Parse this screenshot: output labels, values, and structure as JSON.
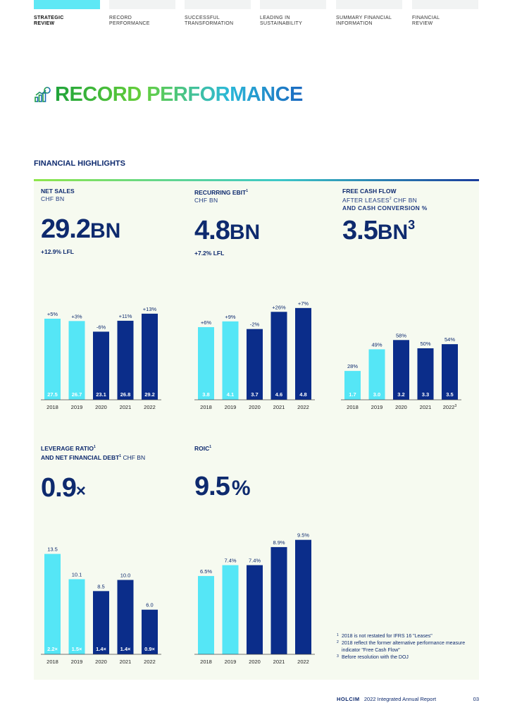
{
  "nav": {
    "items": [
      {
        "label_line1": "STRATEGIC",
        "label_line2": "REVIEW"
      },
      {
        "label_line1": "RECORD",
        "label_line2": "PERFORMANCE"
      },
      {
        "label_line1": "SUCCESSFUL",
        "label_line2": "TRANSFORMATION"
      },
      {
        "label_line1": "LEADING IN",
        "label_line2": "SUSTAINABILITY"
      },
      {
        "label_line1": "SUMMARY FINANCIAL",
        "label_line2": "INFORMATION"
      },
      {
        "label_line1": "FINANCIAL",
        "label_line2": "REVIEW"
      }
    ]
  },
  "page_title": "RECORD PERFORMANCE",
  "section_title": "FINANCIAL HIGHLIGHTS",
  "kpis": {
    "net_sales": {
      "label": "NET SALES",
      "sub": "CHF BN",
      "value": "29.2",
      "unit": "BN",
      "change": "+12.9% LFL"
    },
    "ebit": {
      "label": "RECURRING EBIT",
      "label_sup": "1",
      "sub": "CHF BN",
      "value": "4.8",
      "unit": "BN",
      "change": "+7.2% LFL"
    },
    "fcf": {
      "label": "FREE CASH FLOW",
      "sub1_a": "AFTER LEASES",
      "sub1_sup": "2",
      "sub1_b": " CHF BN",
      "sub2": "AND CASH CONVERSION %",
      "value": "3.5",
      "unit": "BN",
      "unit_sup": "3"
    },
    "leverage": {
      "label1": "LEVERAGE RATIO",
      "label1_sup": "1",
      "label2_a": "AND NET FINANCIAL DEBT",
      "label2_sup": "1",
      "label2_b": " CHF BN",
      "value": "0.9",
      "unit": "×"
    },
    "roic": {
      "label": "ROIC",
      "label_sup": "1",
      "value": "9.5",
      "unit": "%"
    }
  },
  "colors": {
    "light": "#55e6f6",
    "dark": "#0b2d8a",
    "label_text": "#0e2a6e"
  },
  "chart_data": [
    {
      "type": "bar",
      "title": "NET SALES CHF BN",
      "categories": [
        "2018",
        "2019",
        "2020",
        "2021",
        "2022"
      ],
      "values": [
        27.5,
        26.7,
        23.1,
        26.8,
        29.2
      ],
      "inside_labels": [
        "27.5",
        "26.7",
        "23.1",
        "26.8",
        "29.2"
      ],
      "top_labels": [
        "+5%",
        "+3%",
        "-6%",
        "+11%",
        "+13%"
      ],
      "shades": [
        "light",
        "light",
        "dark",
        "dark",
        "dark"
      ],
      "ylim": [
        0,
        33
      ]
    },
    {
      "type": "bar",
      "title": "RECURRING EBIT CHF BN",
      "categories": [
        "2018",
        "2019",
        "2020",
        "2021",
        "2022"
      ],
      "values": [
        3.8,
        4.1,
        3.7,
        4.6,
        4.8
      ],
      "inside_labels": [
        "3.8",
        "4.1",
        "3.7",
        "4.6",
        "4.8"
      ],
      "top_labels": [
        "+6%",
        "+9%",
        "-2%",
        "+26%",
        "+7%"
      ],
      "shades": [
        "light",
        "light",
        "dark",
        "dark",
        "dark"
      ],
      "ylim": [
        0,
        5.2
      ]
    },
    {
      "type": "bar",
      "title": "FREE CASH FLOW AFTER LEASES CHF BN AND CASH CONVERSION %",
      "categories": [
        "2018",
        "2019",
        "2020",
        "2021",
        "2022"
      ],
      "category_sups": [
        "",
        "",
        "",
        "",
        "3"
      ],
      "values": [
        28,
        49,
        58,
        50,
        54
      ],
      "inside_labels": [
        "1.7",
        "3.0",
        "3.2",
        "3.3",
        "3.5"
      ],
      "top_labels": [
        "28%",
        "49%",
        "58%",
        "50%",
        "54%"
      ],
      "shades": [
        "light",
        "light",
        "dark",
        "dark",
        "dark"
      ],
      "ylim": [
        0,
        76
      ]
    },
    {
      "type": "bar",
      "title": "LEVERAGE RATIO AND NET FINANCIAL DEBT CHF BN",
      "categories": [
        "2018",
        "2019",
        "2020",
        "2021",
        "2022"
      ],
      "values": [
        13.5,
        10.1,
        8.5,
        10.0,
        6.0
      ],
      "inside_labels": [
        "2.2×",
        "1.5×",
        "1.4×",
        "1.4×",
        "0.9×"
      ],
      "top_labels": [
        "13.5",
        "10.1",
        "8.5",
        "10.0",
        "6.0"
      ],
      "shades": [
        "light",
        "light",
        "dark",
        "dark",
        "dark"
      ],
      "ylim": [
        0,
        14.6
      ]
    },
    {
      "type": "bar",
      "title": "ROIC",
      "categories": [
        "2018",
        "2019",
        "2020",
        "2021",
        "2022"
      ],
      "values": [
        6.5,
        7.4,
        7.4,
        8.9,
        9.5
      ],
      "inside_labels": [
        "",
        "",
        "",
        "",
        ""
      ],
      "top_labels": [
        "6.5%",
        "7.4%",
        "7.4%",
        "8.9%",
        "9.5%"
      ],
      "shades": [
        "light",
        "light",
        "dark",
        "dark",
        "dark"
      ],
      "ylim": [
        0,
        10.3
      ]
    }
  ],
  "footnotes": [
    {
      "num": "1",
      "text": "2018 is not restated for IFRS 16 \"Leases\""
    },
    {
      "num": "2",
      "text": "2018 reflect the former alternative performance measure indicator \"Free Cash Flow\""
    },
    {
      "num": "3",
      "text": "Before resolution with the DOJ"
    }
  ],
  "footer": {
    "brand": "HOLCIM",
    "report": "2022 Integrated Annual Report",
    "page": "03"
  }
}
